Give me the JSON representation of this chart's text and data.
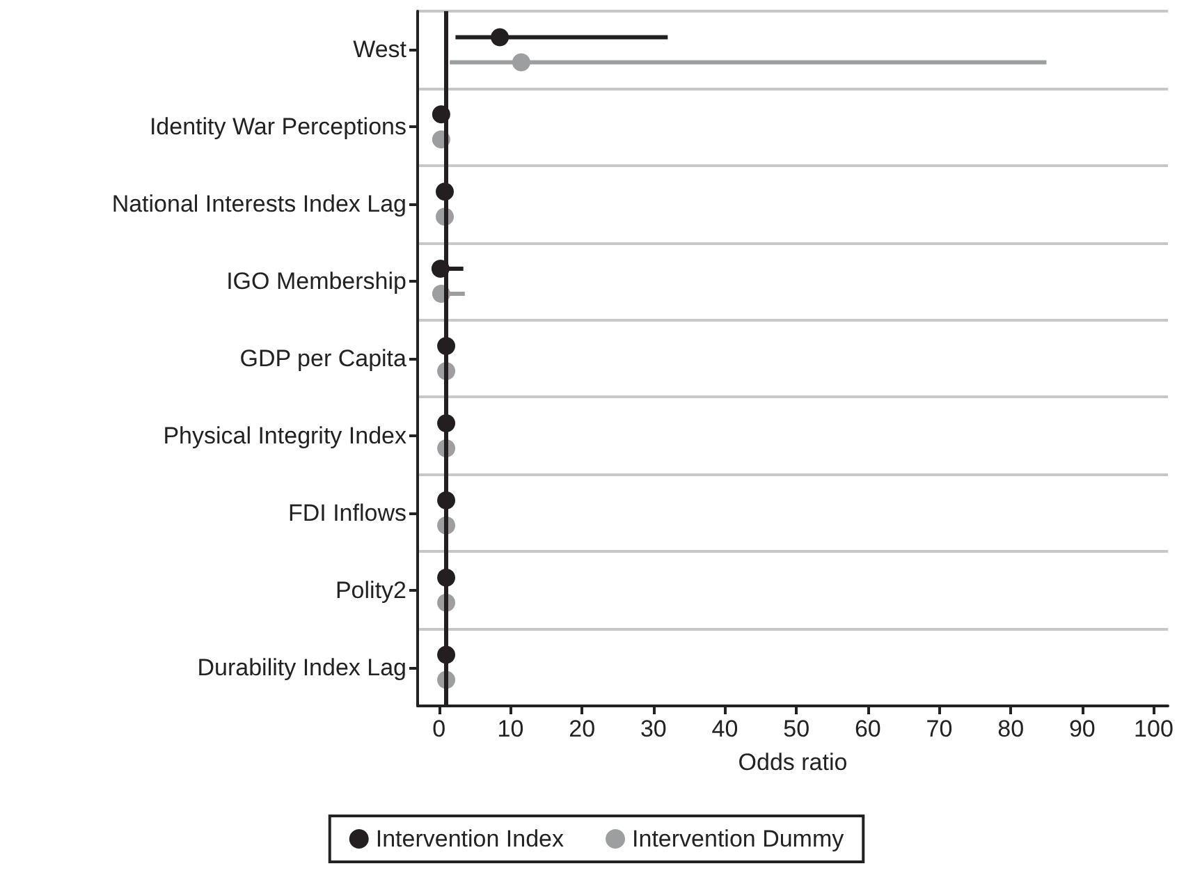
{
  "chart_data": {
    "type": "scatter",
    "orientation": "horizontal",
    "xlabel": "Odds ratio",
    "categories": [
      "West",
      "Identity War Perceptions",
      "National Interests Index Lag",
      "IGO Membership",
      "GDP per Capita",
      "Physical Integrity Index",
      "FDI Inflows",
      "Polity2",
      "Durability Index Lag"
    ],
    "series": [
      {
        "name": "Intervention Index",
        "color": "#231f20",
        "values": [
          8.5,
          0.3,
          0.8,
          0.2,
          1.0,
          1.0,
          1.0,
          1.0,
          1.0
        ],
        "errors": [
          [
            2.3,
            32
          ],
          null,
          null,
          [
            0.2,
            3.4
          ],
          null,
          null,
          null,
          null,
          null
        ]
      },
      {
        "name": "Intervention Dummy",
        "color": "#9d9ea0",
        "values": [
          11.5,
          0.3,
          0.8,
          0.3,
          1.0,
          1.0,
          1.0,
          1.0,
          1.0
        ],
        "errors": [
          [
            1.5,
            85
          ],
          null,
          null,
          [
            0.3,
            3.6
          ],
          null,
          null,
          null,
          null,
          null
        ]
      }
    ],
    "xlim": [
      -3,
      102
    ],
    "xticks": [
      0,
      10,
      20,
      30,
      40,
      50,
      60,
      70,
      80,
      90,
      100
    ],
    "ref_lines": [
      {
        "axis": "x",
        "value": 1,
        "color": "#231f20",
        "line_style": "solid"
      }
    ],
    "grid": "y",
    "legend": "bottom",
    "marker": "circle"
  }
}
